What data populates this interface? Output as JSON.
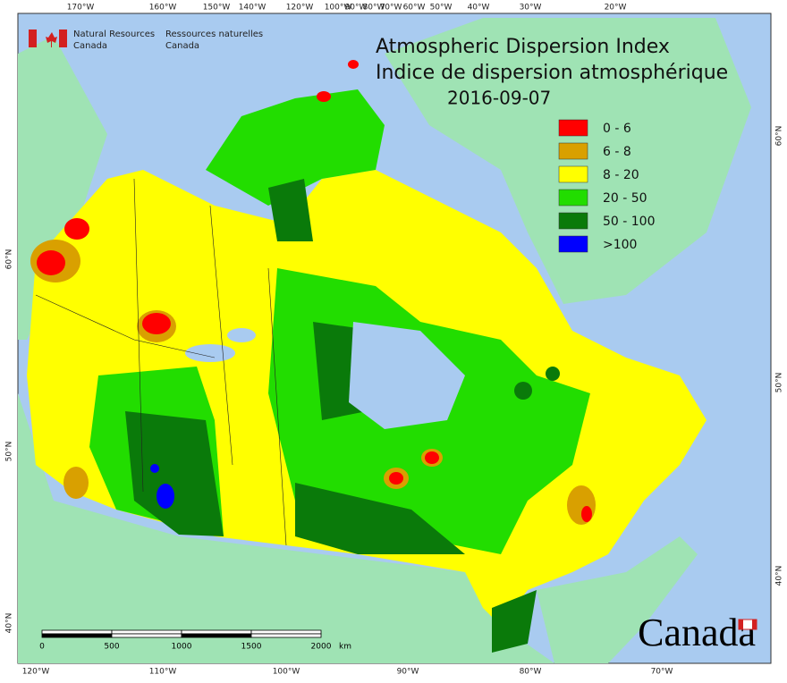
{
  "header": {
    "agency_en": [
      "Natural Resources",
      "Canada"
    ],
    "agency_fr": [
      "Ressources naturelles",
      "Canada"
    ]
  },
  "title": [
    "Atmospheric Dispersion Index",
    "Indice de dispersion atmosphérique"
  ],
  "date": "2016-09-07",
  "legend": [
    {
      "label": "0 - 6",
      "color": "#ff0000"
    },
    {
      "label": "6 - 8",
      "color": "#d9a000"
    },
    {
      "label": "8 - 20",
      "color": "#ffff00"
    },
    {
      "label": "20 - 50",
      "color": "#22dd00"
    },
    {
      "label": "50 - 100",
      "color": "#0a7a0a"
    },
    {
      "label": ">100",
      "color": "#0000ff"
    }
  ],
  "graticule": {
    "top": [
      "170°W",
      "160°W",
      "150°W",
      "140°W",
      "120°W",
      "100°W",
      "90°W",
      "80°W",
      "70°W",
      "60°W",
      "50°W",
      "40°W",
      "30°W",
      "20°W"
    ],
    "bottom": [
      "120°W",
      "110°W",
      "100°W",
      "90°W",
      "80°W",
      "70°W"
    ],
    "left": [
      "60°N",
      "50°N",
      "40°N"
    ],
    "right": [
      "60°N",
      "50°N",
      "40°N"
    ]
  },
  "scale_bar": {
    "ticks": [
      "0",
      "500",
      "1000",
      "1500",
      "2000"
    ],
    "unit": "km"
  },
  "wordmark": "Canada"
}
